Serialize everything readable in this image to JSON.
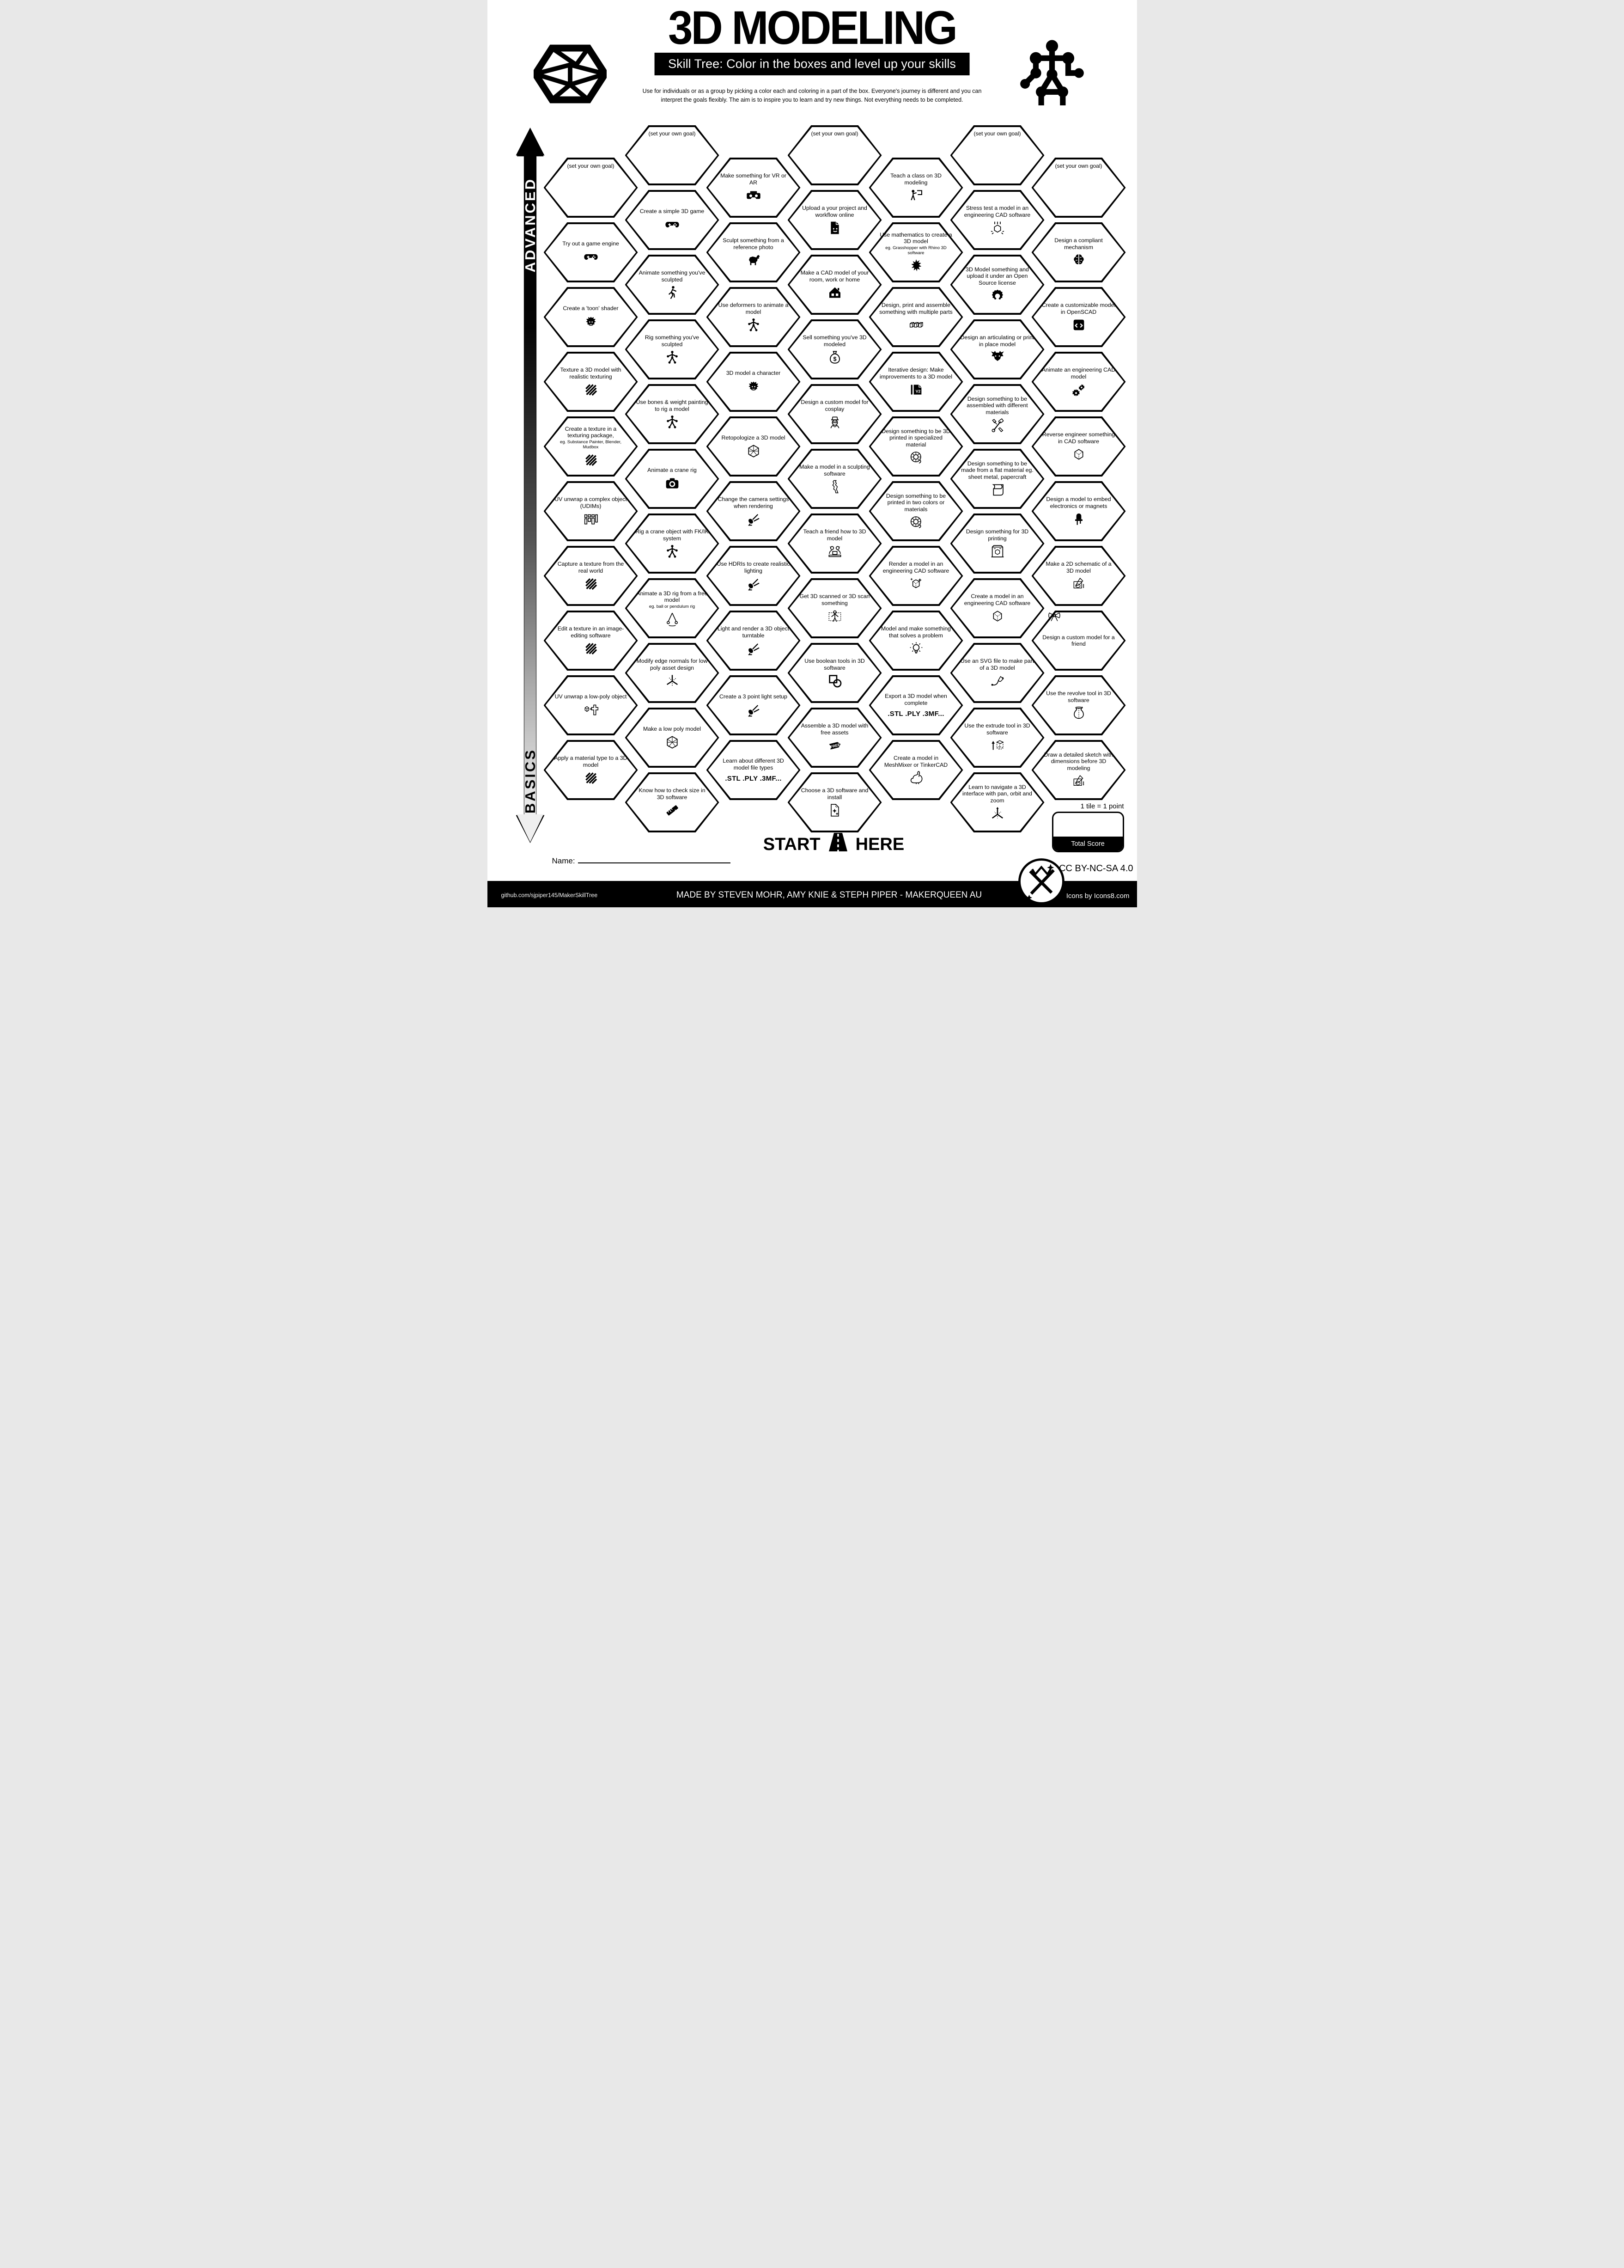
{
  "header": {
    "title": "3D MODELING",
    "subtitle": "Skill Tree:  Color in the boxes and level up your skills",
    "desc1": "Use for individuals or as a group by picking a color each and coloring in a part of the box.  Everyone's journey is different and you can",
    "desc2": "interpret the goals flexibly.  The aim is to inspire you to learn and try new things. Not everything needs to be completed."
  },
  "axis": {
    "advanced": "ADVANCED",
    "basics": "BASICS"
  },
  "start": {
    "left": "START",
    "right": "HERE"
  },
  "name_label": "Name:",
  "score": {
    "note": "1 tile = 1 point",
    "label": "Total Score"
  },
  "license": "CC BY-NC-SA 4.0",
  "footer": {
    "repo": "github.com/sjpiper145/MakerSkillTree",
    "credit": "MADE BY STEVEN MOHR, AMY KNIE & STEPH PIPER  -  MAKERQUEEN AU",
    "icons": "Icons by Icons8.com"
  },
  "colors": {
    "ink": "#000000",
    "paper": "#ffffff"
  },
  "hexes": [
    {
      "c": 0,
      "r": 0,
      "t": "(set your own goal)",
      "goal": true
    },
    {
      "c": 0,
      "r": 1,
      "t": "Try out a game engine",
      "i": "gamepad"
    },
    {
      "c": 0,
      "r": 2,
      "t": "Create a 'toon' shader",
      "i": "face"
    },
    {
      "c": 0,
      "r": 3,
      "t": "Texture a 3D model with realistic texturing",
      "i": "stripes"
    },
    {
      "c": 0,
      "r": 4,
      "t": "Create a texture in a texturing package,",
      "s": "eg. Substance Painter, Blender, Mudbox",
      "i": "stripes"
    },
    {
      "c": 0,
      "r": 5,
      "t": "UV unwrap a complex object (UDIMs)",
      "i": "udim"
    },
    {
      "c": 0,
      "r": 6,
      "t": "Capture a texture from the real world",
      "i": "stripes"
    },
    {
      "c": 0,
      "r": 7,
      "t": "Edit a texture in an image-editing software",
      "i": "stripes"
    },
    {
      "c": 0,
      "r": 8,
      "t": "UV unwrap a low-poly object",
      "i": "unwrap"
    },
    {
      "c": 0,
      "r": 9,
      "t": "Apply a material type to a 3D model",
      "i": "stripes"
    },
    {
      "c": 1,
      "r": 0,
      "t": "(set your own goal)",
      "goal": true
    },
    {
      "c": 1,
      "r": 1,
      "t": "Create a simple 3D game",
      "i": "gamepad"
    },
    {
      "c": 1,
      "r": 2,
      "t": "Animate something you've sculpted",
      "i": "walk"
    },
    {
      "c": 1,
      "r": 3,
      "t": "Rig something you've sculpted",
      "i": "rig"
    },
    {
      "c": 1,
      "r": 4,
      "t": "Use bones & weight painting to rig a model",
      "i": "rig"
    },
    {
      "c": 1,
      "r": 5,
      "t": "Animate a crane rig",
      "i": "camera"
    },
    {
      "c": 1,
      "r": 6,
      "t": "Rig a crane object with FK/IK system",
      "i": "rig"
    },
    {
      "c": 1,
      "r": 7,
      "t": "Animate a 3D rig from a free model",
      "s": "eg. ball or pendulum rig",
      "i": "pendulum"
    },
    {
      "c": 1,
      "r": 8,
      "t": "Modify edge normals for low poly asset design",
      "i": "normals"
    },
    {
      "c": 1,
      "r": 9,
      "t": "Make a low poly model",
      "i": "wirehex"
    },
    {
      "c": 1,
      "r": 10,
      "t": "Know how to check size in 3D software",
      "i": "ruler"
    },
    {
      "c": 2,
      "r": 0,
      "t": "Make something for VR or AR",
      "i": "vr"
    },
    {
      "c": 2,
      "r": 1,
      "t": "Sculpt something from a reference photo",
      "i": "dog"
    },
    {
      "c": 2,
      "r": 2,
      "t": "Use deformers to animate a model",
      "i": "rig"
    },
    {
      "c": 2,
      "r": 3,
      "t": "3D model a character",
      "i": "face"
    },
    {
      "c": 2,
      "r": 4,
      "t": "Retopologize a 3D model",
      "i": "wirehex"
    },
    {
      "c": 2,
      "r": 5,
      "t": "Change the camera settings when rendering",
      "i": "spotlight"
    },
    {
      "c": 2,
      "r": 6,
      "t": "Use HDRIs to create realistic lighting",
      "i": "spotlight"
    },
    {
      "c": 2,
      "r": 7,
      "t": "Light and render a 3D object turntable",
      "i": "spotlight"
    },
    {
      "c": 2,
      "r": 8,
      "t": "Create a 3 point light setup",
      "i": "spotlight"
    },
    {
      "c": 2,
      "r": 9,
      "t": "Learn about different 3D model file types",
      "b": ".STL .PLY .3MF..."
    },
    {
      "c": 3,
      "r": 0,
      "t": "(set your own goal)",
      "goal": true
    },
    {
      "c": 3,
      "r": 1,
      "t": "Upload a your project and workflow online",
      "i": "filesmile"
    },
    {
      "c": 3,
      "r": 2,
      "t": "Make a CAD model of your room, work or home",
      "i": "house"
    },
    {
      "c": 3,
      "r": 3,
      "t": "Sell something you've 3D modeled",
      "i": "moneybag"
    },
    {
      "c": 3,
      "r": 4,
      "t": "Design a custom model for cosplay",
      "i": "cosplay"
    },
    {
      "c": 3,
      "r": 5,
      "t": "Make a model in a sculpting software",
      "i": "statue"
    },
    {
      "c": 3,
      "r": 6,
      "t": "Teach a friend how to 3D model",
      "i": "teach"
    },
    {
      "c": 3,
      "r": 7,
      "t": "Get 3D scanned or 3D scan something",
      "i": "scan"
    },
    {
      "c": 3,
      "r": 8,
      "t": "Use boolean tools in 3D software",
      "i": "boolean"
    },
    {
      "c": 3,
      "r": 9,
      "t": "Assemble a 3D model with free assets",
      "i": "free"
    },
    {
      "c": 3,
      "r": 10,
      "t": "Choose a 3D software and install",
      "i": "filesparkle"
    },
    {
      "c": 4,
      "r": 0,
      "t": "Teach a class on 3D modeling",
      "i": "teacher"
    },
    {
      "c": 4,
      "r": 1,
      "t": "Use mathematics to create a 3D model",
      "s": "eg. Grasshopper with Rhino 3D software",
      "i": "fractal"
    },
    {
      "c": 4,
      "r": 2,
      "t": "Design, print and assemble something with multiple parts",
      "i": "cubes"
    },
    {
      "c": 4,
      "r": 3,
      "t": "Iterative design:  Make improvements to a 3D model",
      "i": "v2"
    },
    {
      "c": 4,
      "r": 4,
      "t": "Design something to be 3D printed in specialized material",
      "i": "spool"
    },
    {
      "c": 4,
      "r": 5,
      "t": "Design something to be printed in two colors or materials",
      "i": "spool"
    },
    {
      "c": 4,
      "r": 6,
      "t": "Render a model in an engineering CAD software",
      "i": "cubesparkle"
    },
    {
      "c": 4,
      "r": 7,
      "t": "Model and make something that solves a problem",
      "i": "bulb"
    },
    {
      "c": 4,
      "r": 8,
      "t": "Export a 3D model when complete",
      "b": ".STL .PLY .3MF..."
    },
    {
      "c": 4,
      "r": 9,
      "t": "Create a model in MeshMixer or TinkerCAD",
      "i": "rabbit"
    },
    {
      "c": 5,
      "r": 0,
      "t": "(set your own goal)",
      "goal": true
    },
    {
      "c": 5,
      "r": 1,
      "t": "Stress test a model in an engineering CAD software",
      "i": "press"
    },
    {
      "c": 5,
      "r": 2,
      "t": "3D Model something and upload it under an Open Source license",
      "i": "osgear"
    },
    {
      "c": 5,
      "r": 3,
      "t": "Design an articulating or print in place model",
      "i": "dragon"
    },
    {
      "c": 5,
      "r": 4,
      "t": "Design something to be assembled with different materials",
      "i": "tools"
    },
    {
      "c": 5,
      "r": 5,
      "t": "Design something to be made from a flat material eg. sheet metal, papercraft",
      "i": "paper"
    },
    {
      "c": 5,
      "r": 6,
      "t": "Design something for 3D printing",
      "i": "printer"
    },
    {
      "c": 5,
      "r": 7,
      "t": "Create a model in an engineering CAD software",
      "i": "cube"
    },
    {
      "c": 5,
      "r": 8,
      "t": "Use an SVG file to make part of a 3D model",
      "i": "svgpen"
    },
    {
      "c": 5,
      "r": 9,
      "t": "Use the extrude tool in 3D software",
      "i": "extrude"
    },
    {
      "c": 5,
      "r": 10,
      "t": "Learn to navigate a 3D interface with pan, orbit and zoom",
      "i": "axis"
    },
    {
      "c": 6,
      "r": 0,
      "t": "(set your own goal)",
      "goal": true
    },
    {
      "c": 6,
      "r": 1,
      "t": "Design a compliant mechanism",
      "i": "brain"
    },
    {
      "c": 6,
      "r": 2,
      "t": "Create a customizable model in OpenSCAD",
      "i": "code"
    },
    {
      "c": 6,
      "r": 3,
      "t": "Animate an engineering CAD model",
      "i": "gears"
    },
    {
      "c": 6,
      "r": 4,
      "t": "Reverse engineer something in CAD software",
      "i": "cube"
    },
    {
      "c": 6,
      "r": 5,
      "t": "Design a model to embed electronics or magnets",
      "i": "led"
    },
    {
      "c": 6,
      "r": 6,
      "t": "Make a 2D schematic of a 3D model",
      "i": "sketch"
    },
    {
      "c": 6,
      "r": 7,
      "t": "Design a custom model for a friend",
      "i": "bow",
      "ipos": "top"
    },
    {
      "c": 6,
      "r": 8,
      "t": "Use the revolve tool in 3D software",
      "i": "vase"
    },
    {
      "c": 6,
      "r": 9,
      "t": "Draw a detailed sketch with dimensions before 3D modeling",
      "i": "sketch"
    }
  ]
}
